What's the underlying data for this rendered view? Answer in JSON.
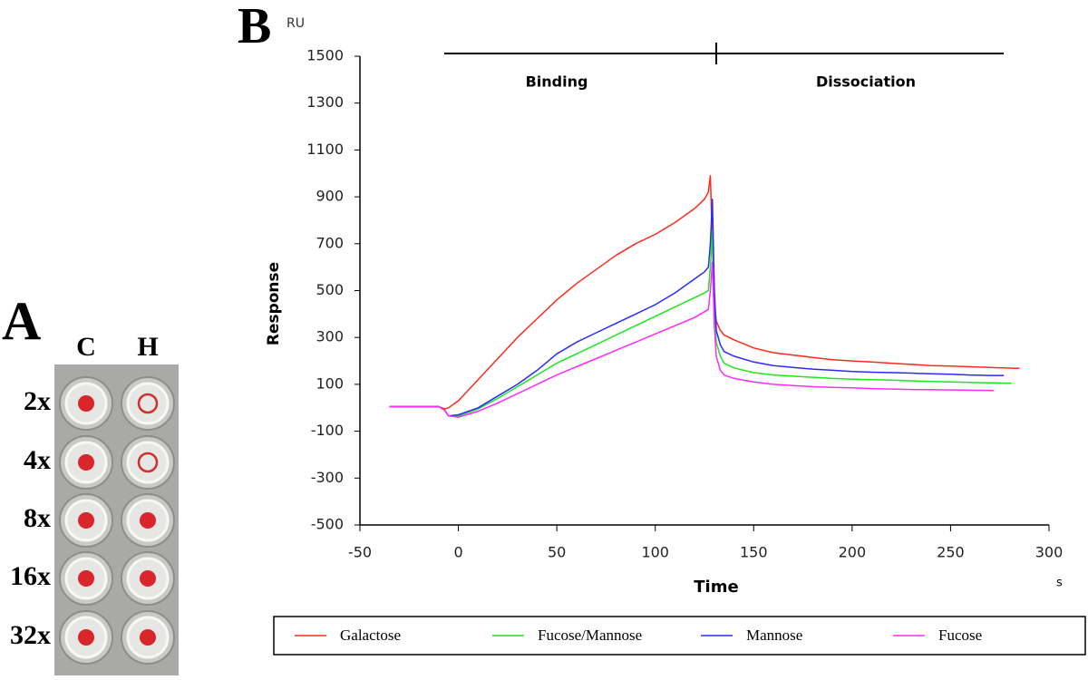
{
  "panel_a": {
    "label": "A",
    "columns": [
      "C",
      "H"
    ],
    "rows": [
      "2x",
      "4x",
      "8x",
      "16x",
      "32x"
    ]
  },
  "chart_data": {
    "type": "line",
    "panel_label": "B",
    "y_unit": "RU",
    "x_unit": "s",
    "ylabel": "Response",
    "xlabel": "Time",
    "annotations": [
      "Binding",
      "Dissociation"
    ],
    "xlim": [
      -50,
      300
    ],
    "xticks": [
      -50,
      0,
      50,
      100,
      150,
      200,
      250,
      300
    ],
    "ylim": [
      -500,
      1500
    ],
    "yticks": [
      -500,
      -300,
      -100,
      100,
      300,
      500,
      700,
      900,
      1100,
      1300,
      1500
    ],
    "x": [
      -35,
      -10,
      -7,
      -5,
      0,
      10,
      20,
      30,
      40,
      50,
      60,
      70,
      80,
      90,
      100,
      110,
      120,
      125,
      127,
      128,
      129,
      130,
      131,
      133,
      135,
      140,
      150,
      160,
      170,
      180,
      190,
      200,
      210,
      220,
      230,
      240,
      250,
      260,
      270,
      272,
      277,
      281,
      285
    ],
    "series": [
      {
        "name": "Galactose",
        "color": "#ff2a1a",
        "values": [
          5,
          5,
          -5,
          0,
          30,
          120,
          210,
          300,
          380,
          460,
          530,
          590,
          650,
          700,
          740,
          790,
          850,
          890,
          920,
          990,
          700,
          450,
          370,
          330,
          310,
          290,
          255,
          235,
          225,
          215,
          205,
          200,
          195,
          190,
          185,
          180,
          178,
          175,
          172,
          171,
          170,
          169,
          168
        ]
      },
      {
        "name": "Fucose/Mannose",
        "color": "#1ee61e",
        "values": [
          5,
          5,
          -10,
          -35,
          -35,
          -5,
          40,
          90,
          140,
          190,
          230,
          270,
          310,
          350,
          390,
          430,
          470,
          490,
          500,
          600,
          760,
          450,
          280,
          220,
          190,
          170,
          150,
          140,
          135,
          130,
          125,
          122,
          120,
          118,
          115,
          112,
          110,
          108,
          106,
          106,
          105,
          105,
          null
        ]
      },
      {
        "name": "Mannose",
        "color": "#2a2aff",
        "values": [
          5,
          5,
          -10,
          -35,
          -30,
          0,
          50,
          100,
          160,
          230,
          280,
          320,
          360,
          400,
          440,
          490,
          550,
          580,
          600,
          700,
          890,
          500,
          330,
          270,
          240,
          220,
          195,
          180,
          172,
          165,
          160,
          155,
          152,
          150,
          148,
          145,
          143,
          140,
          138,
          138,
          137,
          null,
          null
        ]
      },
      {
        "name": "Fucose",
        "color": "#ff2aff",
        "values": [
          5,
          5,
          -10,
          -35,
          -40,
          -15,
          20,
          60,
          100,
          140,
          175,
          210,
          245,
          280,
          315,
          350,
          385,
          410,
          420,
          500,
          620,
          350,
          220,
          160,
          140,
          125,
          110,
          100,
          95,
          90,
          87,
          85,
          82,
          80,
          78,
          77,
          76,
          75,
          74,
          73,
          null,
          null,
          null
        ]
      }
    ]
  }
}
